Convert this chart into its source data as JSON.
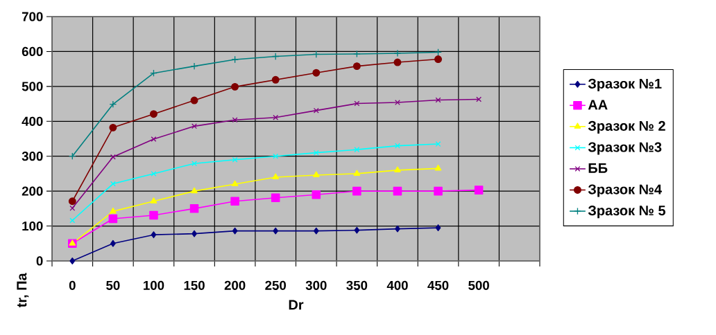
{
  "chart_data": {
    "type": "line",
    "xlabel": "Dr",
    "ylabel": "tr, Па",
    "categories": [
      "0",
      "50",
      "100",
      "150",
      "200",
      "250",
      "300",
      "350",
      "400",
      "450",
      "500",
      null
    ],
    "ylim": [
      0,
      700
    ],
    "yticks": [
      0,
      100,
      200,
      300,
      400,
      500,
      600,
      700
    ],
    "grid": true,
    "legend": "right",
    "series": [
      {
        "name": "Зразок №1",
        "color": "#000080",
        "marker": "diamond",
        "values": [
          0,
          50,
          75,
          78,
          86,
          86,
          86,
          88,
          92,
          95,
          null,
          null
        ]
      },
      {
        "name": "АА",
        "color": "#ff00ff",
        "marker": "square",
        "values": [
          50,
          121,
          131,
          150,
          171,
          181,
          190,
          200,
          200,
          200,
          203,
          null
        ]
      },
      {
        "name": "Зразок № 2",
        "color": "#ffff00",
        "marker": "triangle",
        "values": [
          50,
          142,
          171,
          200,
          220,
          240,
          246,
          250,
          260,
          265,
          null,
          null
        ]
      },
      {
        "name": "Зразок №3",
        "color": "#00ffff",
        "marker": "cross",
        "values": [
          116,
          221,
          250,
          279,
          290,
          300,
          310,
          319,
          330,
          335,
          null,
          null
        ]
      },
      {
        "name": "ББ",
        "color": "#800080",
        "marker": "cross",
        "values": [
          151,
          298,
          349,
          386,
          404,
          411,
          431,
          451,
          454,
          461,
          463,
          null
        ]
      },
      {
        "name": "Зразок №4",
        "color": "#800000",
        "marker": "circle",
        "values": [
          171,
          382,
          421,
          460,
          499,
          519,
          539,
          558,
          569,
          578,
          null,
          null
        ]
      },
      {
        "name": "Зразок № 5",
        "color": "#008080",
        "marker": "plus",
        "values": [
          300,
          449,
          538,
          558,
          577,
          586,
          592,
          593,
          595,
          598,
          null,
          null
        ]
      }
    ]
  }
}
